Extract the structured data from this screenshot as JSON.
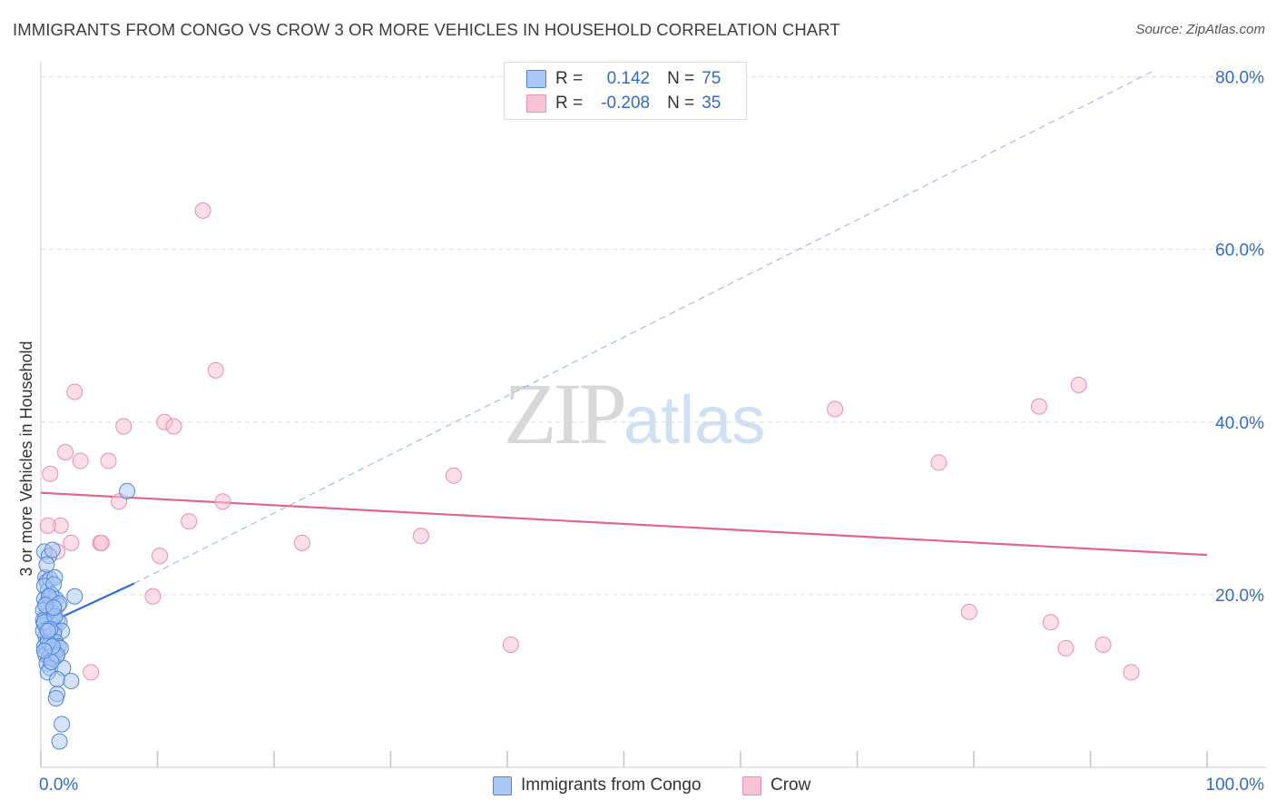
{
  "title": "IMMIGRANTS FROM CONGO VS CROW 3 OR MORE VEHICLES IN HOUSEHOLD CORRELATION CHART",
  "source": "Source: ZipAtlas.com",
  "watermark": {
    "zip": "ZIP",
    "atlas": "atlas"
  },
  "legend": {
    "rows": [
      {
        "r_label": "R =",
        "r_value": "0.142",
        "n_label": "N =",
        "n_value": "75"
      },
      {
        "r_label": "R =",
        "r_value": "-0.208",
        "n_label": "N =",
        "n_value": "35"
      }
    ]
  },
  "bottom_legend": {
    "series1": "Immigrants from Congo",
    "series2": "Crow"
  },
  "colors": {
    "congo_fill": "#a9c8f5",
    "congo_stroke": "#4f86d9",
    "congo_line": "#2a6fd6",
    "crow_fill": "#f8c3d4",
    "crow_stroke": "#e88fac",
    "crow_line": "#e0658f",
    "axis_label": "#2f6bd0",
    "grid": "#dedede"
  },
  "chart_data": {
    "type": "scatter",
    "title": "IMMIGRANTS FROM CONGO VS CROW 3 OR MORE VEHICLES IN HOUSEHOLD CORRELATION CHART",
    "xlabel": "",
    "ylabel": "3 or more Vehicles in Household",
    "xlim": [
      0,
      100
    ],
    "ylim": [
      0,
      81
    ],
    "x_tick_labels": [
      "0.0%",
      "100.0%"
    ],
    "y_ticks": [
      20,
      40,
      60,
      80
    ],
    "y_tick_labels": [
      "20.0%",
      "40.0%",
      "60.0%",
      "80.0%"
    ],
    "grid": true,
    "legend_position": "top-center",
    "series": [
      {
        "name": "Immigrants from Congo",
        "points": [
          [
            0.3,
            25.0
          ],
          [
            0.4,
            22.0
          ],
          [
            0.5,
            21.5
          ],
          [
            0.6,
            20.5
          ],
          [
            0.7,
            24.5
          ],
          [
            0.8,
            21.8
          ],
          [
            1.0,
            25.2
          ],
          [
            1.2,
            22.0
          ],
          [
            0.3,
            19.5
          ],
          [
            0.5,
            19.0
          ],
          [
            0.6,
            18.5
          ],
          [
            0.8,
            18.0
          ],
          [
            1.0,
            19.2
          ],
          [
            1.3,
            19.5
          ],
          [
            1.5,
            18.8
          ],
          [
            0.4,
            17.5
          ],
          [
            0.6,
            17.0
          ],
          [
            0.9,
            17.2
          ],
          [
            1.1,
            17.8
          ],
          [
            1.4,
            17.0
          ],
          [
            0.3,
            16.5
          ],
          [
            0.5,
            16.0
          ],
          [
            0.7,
            16.2
          ],
          [
            1.0,
            16.5
          ],
          [
            1.2,
            16.0
          ],
          [
            1.6,
            16.8
          ],
          [
            1.8,
            15.8
          ],
          [
            0.4,
            15.2
          ],
          [
            0.6,
            15.0
          ],
          [
            0.9,
            14.8
          ],
          [
            1.1,
            15.5
          ],
          [
            1.3,
            14.5
          ],
          [
            0.3,
            14.0
          ],
          [
            0.5,
            13.8
          ],
          [
            0.8,
            14.2
          ],
          [
            1.0,
            13.5
          ],
          [
            1.2,
            13.2
          ],
          [
            1.5,
            14.0
          ],
          [
            1.7,
            13.8
          ],
          [
            0.4,
            13.0
          ],
          [
            0.7,
            12.8
          ],
          [
            1.0,
            12.5
          ],
          [
            1.3,
            12.8
          ],
          [
            0.5,
            12.0
          ],
          [
            0.8,
            11.5
          ],
          [
            1.9,
            11.5
          ],
          [
            0.6,
            11.0
          ],
          [
            1.4,
            10.2
          ],
          [
            2.6,
            10.0
          ],
          [
            1.4,
            8.5
          ],
          [
            1.3,
            8.0
          ],
          [
            1.8,
            5.0
          ],
          [
            1.6,
            3.0
          ],
          [
            2.9,
            19.8
          ],
          [
            7.4,
            32.0
          ],
          [
            0.3,
            21.0
          ],
          [
            0.2,
            18.2
          ],
          [
            0.2,
            17.0
          ],
          [
            0.2,
            15.8
          ],
          [
            0.9,
            20.0
          ],
          [
            1.1,
            21.2
          ],
          [
            0.5,
            23.5
          ],
          [
            0.7,
            19.8
          ],
          [
            1.6,
            19.0
          ],
          [
            0.3,
            16.8
          ],
          [
            0.6,
            14.5
          ],
          [
            1.4,
            13.0
          ],
          [
            0.9,
            12.2
          ],
          [
            0.4,
            18.8
          ],
          [
            1.2,
            17.5
          ],
          [
            0.8,
            16.0
          ],
          [
            0.6,
            15.8
          ],
          [
            1.0,
            14.0
          ],
          [
            0.3,
            13.5
          ],
          [
            1.1,
            18.5
          ]
        ]
      },
      {
        "name": "Crow",
        "points": [
          [
            13.9,
            64.5
          ],
          [
            15.0,
            46.0
          ],
          [
            2.9,
            43.5
          ],
          [
            7.1,
            39.5
          ],
          [
            10.6,
            40.0
          ],
          [
            11.4,
            39.5
          ],
          [
            2.1,
            36.5
          ],
          [
            3.4,
            35.5
          ],
          [
            5.8,
            35.5
          ],
          [
            6.7,
            30.8
          ],
          [
            15.6,
            30.8
          ],
          [
            12.7,
            28.5
          ],
          [
            1.7,
            28.0
          ],
          [
            0.6,
            28.0
          ],
          [
            2.6,
            26.0
          ],
          [
            5.1,
            26.0
          ],
          [
            5.2,
            26.0
          ],
          [
            22.4,
            26.0
          ],
          [
            10.2,
            24.5
          ],
          [
            1.4,
            25.0
          ],
          [
            9.6,
            19.8
          ],
          [
            4.3,
            11.0
          ],
          [
            35.4,
            33.8
          ],
          [
            32.6,
            26.8
          ],
          [
            40.3,
            14.2
          ],
          [
            68.1,
            41.5
          ],
          [
            85.6,
            41.8
          ],
          [
            89.0,
            44.3
          ],
          [
            77.0,
            35.3
          ],
          [
            79.6,
            18.0
          ],
          [
            86.6,
            16.8
          ],
          [
            87.9,
            13.8
          ],
          [
            91.1,
            14.2
          ],
          [
            93.5,
            11.0
          ],
          [
            0.8,
            34.0
          ]
        ]
      }
    ],
    "trendlines": [
      {
        "series": "Immigrants from Congo",
        "solid": [
          [
            0,
            16.3
          ],
          [
            8.0,
            21.3
          ]
        ],
        "dashed_to": [
          95.6,
          80.8
        ]
      },
      {
        "series": "Crow",
        "solid": [
          [
            0,
            31.8
          ],
          [
            100,
            24.6
          ]
        ]
      }
    ]
  }
}
